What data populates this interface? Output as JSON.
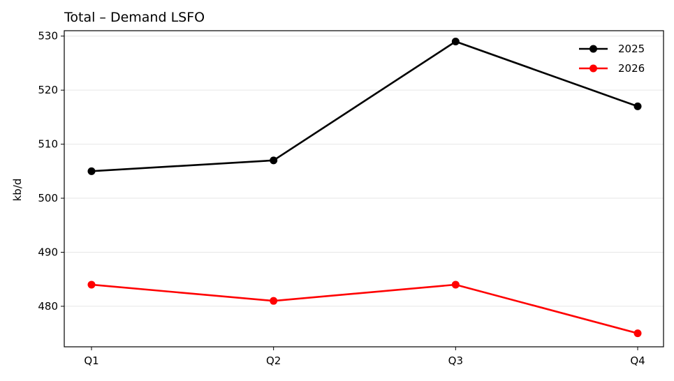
{
  "chart_data": {
    "type": "line",
    "title": "Total – Demand LSFO",
    "xlabel": "",
    "ylabel": "kb/d",
    "categories": [
      "Q1",
      "Q2",
      "Q3",
      "Q4"
    ],
    "yticks": [
      480,
      490,
      500,
      510,
      520,
      530
    ],
    "ylim": [
      472.5,
      531
    ],
    "grid": "horizontal",
    "legend_position": "top-right",
    "series": [
      {
        "name": "2025",
        "color": "#000000",
        "values": [
          505,
          507,
          529,
          517
        ]
      },
      {
        "name": "2026",
        "color": "#ff0000",
        "values": [
          484,
          481,
          484,
          475
        ]
      }
    ]
  }
}
